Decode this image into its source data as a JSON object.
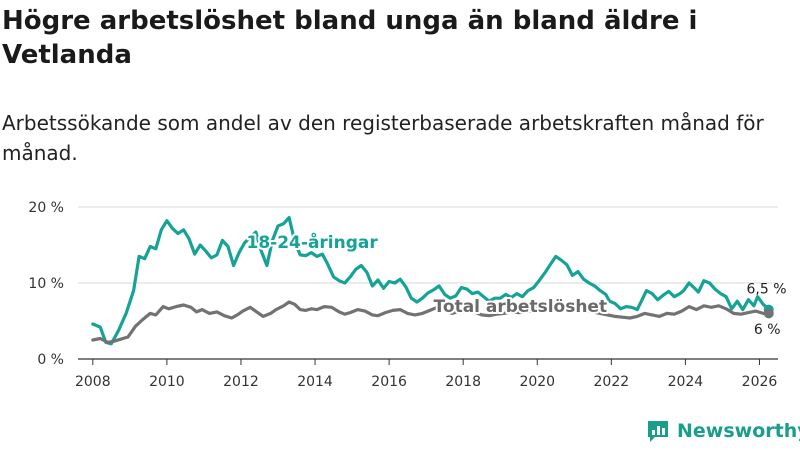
{
  "title": "Högre arbetslöshet bland unga än bland äldre i Vetlanda",
  "subtitle": "Arbetssökande som andel av den registerbaserade arbetskraften månad för månad.",
  "brand": {
    "name": "Newsworthy",
    "icon": "bar-chart-logo-icon"
  },
  "colors": {
    "youth": "#14a396",
    "total": "#727272",
    "grid": "#d9d9d9",
    "axis": "#333333",
    "text": "#333333"
  },
  "chart_data": {
    "type": "line",
    "xlim": [
      2007.6,
      2026.5
    ],
    "ylim": [
      0,
      20
    ],
    "x_ticks": [
      {
        "value": 2008,
        "label": "2008"
      },
      {
        "value": 2010,
        "label": "2010"
      },
      {
        "value": 2012,
        "label": "2012"
      },
      {
        "value": 2014,
        "label": "2014"
      },
      {
        "value": 2016,
        "label": "2016"
      },
      {
        "value": 2018,
        "label": "2018"
      },
      {
        "value": 2020,
        "label": "2020"
      },
      {
        "value": 2022,
        "label": "2022"
      },
      {
        "value": 2024,
        "label": "2024"
      },
      {
        "value": 2026,
        "label": "2026"
      }
    ],
    "y_ticks": [
      {
        "value": 0,
        "label": "0 %"
      },
      {
        "value": 10,
        "label": "10 %"
      },
      {
        "value": 20,
        "label": "20 %"
      }
    ],
    "grid": true,
    "series": [
      {
        "name": "18-24-åringar",
        "label": "18-24-åringar",
        "color_key": "youth",
        "end_label": "6,5 %",
        "points": [
          [
            2008.0,
            4.6
          ],
          [
            2008.2,
            4.2
          ],
          [
            2008.35,
            2.2
          ],
          [
            2008.5,
            2.0
          ],
          [
            2008.7,
            3.8
          ],
          [
            2008.9,
            6.0
          ],
          [
            2009.1,
            9.0
          ],
          [
            2009.25,
            13.5
          ],
          [
            2009.4,
            13.2
          ],
          [
            2009.55,
            14.8
          ],
          [
            2009.7,
            14.5
          ],
          [
            2009.85,
            17.0
          ],
          [
            2010.0,
            18.2
          ],
          [
            2010.15,
            17.2
          ],
          [
            2010.3,
            16.5
          ],
          [
            2010.45,
            17.0
          ],
          [
            2010.6,
            15.8
          ],
          [
            2010.75,
            13.8
          ],
          [
            2010.9,
            15.0
          ],
          [
            2011.05,
            14.2
          ],
          [
            2011.2,
            13.3
          ],
          [
            2011.35,
            13.7
          ],
          [
            2011.5,
            15.6
          ],
          [
            2011.65,
            14.8
          ],
          [
            2011.8,
            12.3
          ],
          [
            2011.95,
            14.0
          ],
          [
            2012.1,
            15.3
          ],
          [
            2012.25,
            16.0
          ],
          [
            2012.4,
            16.7
          ],
          [
            2012.55,
            14.2
          ],
          [
            2012.7,
            12.3
          ],
          [
            2012.85,
            15.6
          ],
          [
            2013.0,
            17.5
          ],
          [
            2013.15,
            17.8
          ],
          [
            2013.3,
            18.6
          ],
          [
            2013.45,
            15.5
          ],
          [
            2013.6,
            13.7
          ],
          [
            2013.75,
            13.6
          ],
          [
            2013.9,
            14.0
          ],
          [
            2014.05,
            13.5
          ],
          [
            2014.2,
            13.8
          ],
          [
            2014.35,
            12.4
          ],
          [
            2014.5,
            10.8
          ],
          [
            2014.65,
            10.3
          ],
          [
            2014.8,
            10.0
          ],
          [
            2014.95,
            10.8
          ],
          [
            2015.1,
            11.8
          ],
          [
            2015.25,
            12.3
          ],
          [
            2015.4,
            11.4
          ],
          [
            2015.55,
            9.6
          ],
          [
            2015.7,
            10.4
          ],
          [
            2015.85,
            9.3
          ],
          [
            2016.0,
            10.2
          ],
          [
            2016.15,
            10.0
          ],
          [
            2016.3,
            10.5
          ],
          [
            2016.45,
            9.5
          ],
          [
            2016.6,
            8.0
          ],
          [
            2016.75,
            7.5
          ],
          [
            2016.9,
            8.0
          ],
          [
            2017.05,
            8.7
          ],
          [
            2017.2,
            9.1
          ],
          [
            2017.35,
            9.6
          ],
          [
            2017.5,
            8.5
          ],
          [
            2017.65,
            8.0
          ],
          [
            2017.8,
            8.3
          ],
          [
            2017.95,
            9.4
          ],
          [
            2018.1,
            9.2
          ],
          [
            2018.25,
            8.6
          ],
          [
            2018.4,
            8.8
          ],
          [
            2018.55,
            8.2
          ],
          [
            2018.7,
            7.6
          ],
          [
            2018.85,
            8.0
          ],
          [
            2019.0,
            8.0
          ],
          [
            2019.15,
            8.5
          ],
          [
            2019.3,
            8.1
          ],
          [
            2019.45,
            8.6
          ],
          [
            2019.6,
            8.2
          ],
          [
            2019.75,
            9.0
          ],
          [
            2019.9,
            9.4
          ],
          [
            2020.05,
            10.3
          ],
          [
            2020.2,
            11.3
          ],
          [
            2020.35,
            12.4
          ],
          [
            2020.5,
            13.5
          ],
          [
            2020.65,
            13.0
          ],
          [
            2020.8,
            12.4
          ],
          [
            2020.95,
            11.0
          ],
          [
            2021.1,
            11.5
          ],
          [
            2021.25,
            10.5
          ],
          [
            2021.4,
            10.0
          ],
          [
            2021.55,
            9.6
          ],
          [
            2021.7,
            9.0
          ],
          [
            2021.85,
            8.5
          ],
          [
            2021.95,
            7.6
          ],
          [
            2022.1,
            7.3
          ],
          [
            2022.25,
            6.6
          ],
          [
            2022.4,
            6.9
          ],
          [
            2022.55,
            6.8
          ],
          [
            2022.7,
            6.5
          ],
          [
            2022.85,
            8.0
          ],
          [
            2022.95,
            9.0
          ],
          [
            2023.1,
            8.6
          ],
          [
            2023.25,
            7.8
          ],
          [
            2023.4,
            8.4
          ],
          [
            2023.55,
            8.9
          ],
          [
            2023.7,
            8.2
          ],
          [
            2023.85,
            8.6
          ],
          [
            2023.95,
            9.0
          ],
          [
            2024.1,
            10.0
          ],
          [
            2024.25,
            9.3
          ],
          [
            2024.35,
            8.8
          ],
          [
            2024.5,
            10.3
          ],
          [
            2024.65,
            10.0
          ],
          [
            2024.8,
            9.2
          ],
          [
            2024.95,
            8.6
          ],
          [
            2025.1,
            8.2
          ],
          [
            2025.25,
            6.6
          ],
          [
            2025.4,
            7.6
          ],
          [
            2025.55,
            6.5
          ],
          [
            2025.7,
            7.8
          ],
          [
            2025.85,
            7.0
          ],
          [
            2025.95,
            8.2
          ],
          [
            2026.1,
            7.2
          ],
          [
            2026.25,
            6.5
          ]
        ]
      },
      {
        "name": "Total arbetslöshet",
        "label": "Total arbetslöshet",
        "color_key": "total",
        "end_label": "6 %",
        "points": [
          [
            2008.0,
            2.5
          ],
          [
            2008.2,
            2.7
          ],
          [
            2008.4,
            2.2
          ],
          [
            2008.55,
            2.3
          ],
          [
            2008.75,
            2.6
          ],
          [
            2008.95,
            2.9
          ],
          [
            2009.15,
            4.3
          ],
          [
            2009.35,
            5.2
          ],
          [
            2009.55,
            6.0
          ],
          [
            2009.7,
            5.8
          ],
          [
            2009.9,
            6.9
          ],
          [
            2010.05,
            6.6
          ],
          [
            2010.25,
            6.9
          ],
          [
            2010.45,
            7.1
          ],
          [
            2010.65,
            6.8
          ],
          [
            2010.8,
            6.2
          ],
          [
            2010.95,
            6.5
          ],
          [
            2011.15,
            6.0
          ],
          [
            2011.35,
            6.2
          ],
          [
            2011.55,
            5.7
          ],
          [
            2011.75,
            5.4
          ],
          [
            2011.9,
            5.8
          ],
          [
            2012.05,
            6.3
          ],
          [
            2012.25,
            6.8
          ],
          [
            2012.45,
            6.1
          ],
          [
            2012.6,
            5.6
          ],
          [
            2012.8,
            6.0
          ],
          [
            2012.95,
            6.5
          ],
          [
            2013.15,
            7.0
          ],
          [
            2013.3,
            7.5
          ],
          [
            2013.45,
            7.2
          ],
          [
            2013.6,
            6.5
          ],
          [
            2013.75,
            6.4
          ],
          [
            2013.9,
            6.6
          ],
          [
            2014.05,
            6.5
          ],
          [
            2014.25,
            6.9
          ],
          [
            2014.45,
            6.8
          ],
          [
            2014.65,
            6.2
          ],
          [
            2014.8,
            5.9
          ],
          [
            2014.95,
            6.1
          ],
          [
            2015.15,
            6.5
          ],
          [
            2015.35,
            6.3
          ],
          [
            2015.55,
            5.8
          ],
          [
            2015.7,
            5.7
          ],
          [
            2015.9,
            6.1
          ],
          [
            2016.1,
            6.4
          ],
          [
            2016.3,
            6.5
          ],
          [
            2016.5,
            6.0
          ],
          [
            2016.7,
            5.8
          ],
          [
            2016.9,
            6.0
          ],
          [
            2017.1,
            6.4
          ],
          [
            2017.3,
            6.8
          ],
          [
            2017.5,
            6.4
          ],
          [
            2017.7,
            6.0
          ],
          [
            2017.9,
            6.3
          ],
          [
            2018.1,
            6.4
          ],
          [
            2018.3,
            6.2
          ],
          [
            2018.5,
            5.8
          ],
          [
            2018.7,
            5.7
          ],
          [
            2018.9,
            5.9
          ],
          [
            2019.1,
            6.0
          ],
          [
            2019.3,
            6.2
          ],
          [
            2019.5,
            6.1
          ],
          [
            2019.7,
            6.2
          ],
          [
            2019.9,
            6.4
          ],
          [
            2020.1,
            6.8
          ],
          [
            2020.3,
            7.2
          ],
          [
            2020.5,
            7.4
          ],
          [
            2020.7,
            7.0
          ],
          [
            2020.9,
            6.7
          ],
          [
            2021.1,
            6.8
          ],
          [
            2021.3,
            6.4
          ],
          [
            2021.5,
            6.2
          ],
          [
            2021.7,
            6.0
          ],
          [
            2021.9,
            5.8
          ],
          [
            2022.1,
            5.6
          ],
          [
            2022.3,
            5.5
          ],
          [
            2022.5,
            5.4
          ],
          [
            2022.7,
            5.6
          ],
          [
            2022.9,
            6.0
          ],
          [
            2023.1,
            5.8
          ],
          [
            2023.3,
            5.6
          ],
          [
            2023.5,
            6.0
          ],
          [
            2023.7,
            5.9
          ],
          [
            2023.9,
            6.3
          ],
          [
            2024.1,
            6.9
          ],
          [
            2024.3,
            6.5
          ],
          [
            2024.5,
            7.0
          ],
          [
            2024.7,
            6.8
          ],
          [
            2024.9,
            7.0
          ],
          [
            2025.1,
            6.6
          ],
          [
            2025.3,
            6.0
          ],
          [
            2025.5,
            5.9
          ],
          [
            2025.7,
            6.1
          ],
          [
            2025.9,
            6.3
          ],
          [
            2026.1,
            6.0
          ],
          [
            2026.25,
            6.0
          ]
        ]
      }
    ]
  }
}
